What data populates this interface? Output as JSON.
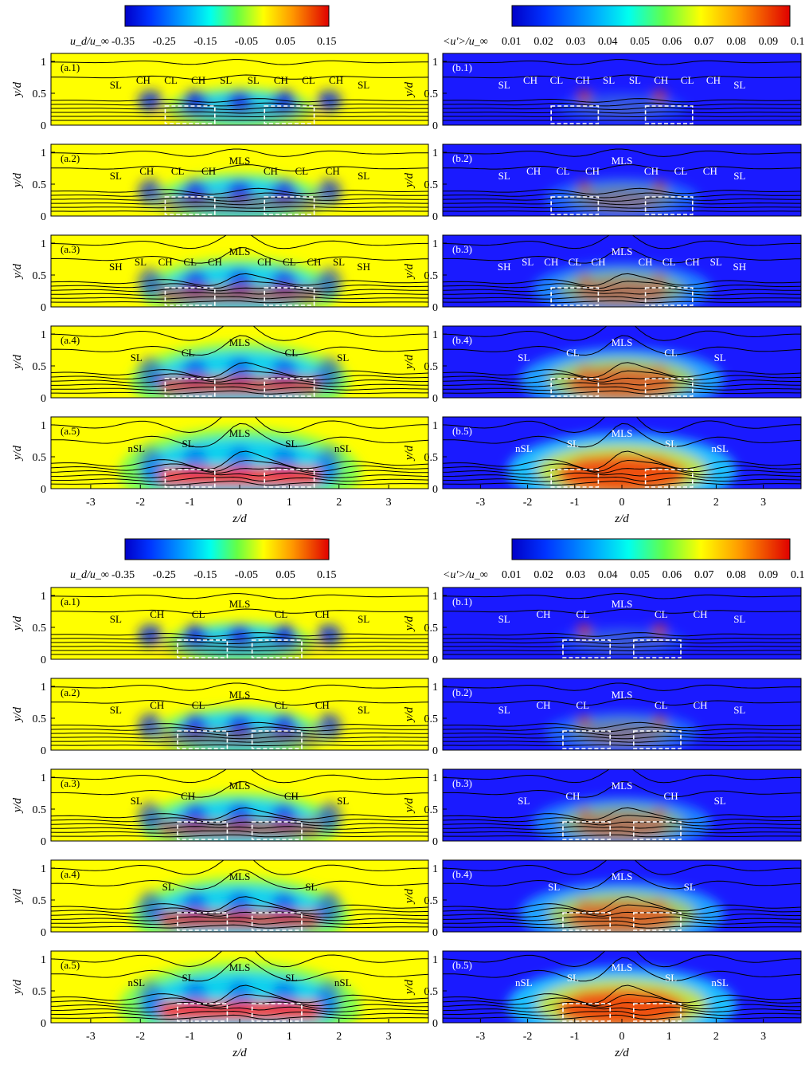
{
  "figure": {
    "blocks": [
      {
        "left": {
          "colorbar": {
            "label": "u_d/u_∞",
            "ticks": [
              "-0.35",
              "-0.25",
              "-0.15",
              "-0.05",
              "0.05",
              "0.15"
            ],
            "range": [
              -0.4,
              0.2
            ]
          },
          "panels": [
            {
              "tag": "(a.1)",
              "labels": [
                "SL",
                "CH",
                "CL",
                "CH",
                "SL",
                "SL",
                "CH",
                "CL",
                "CH",
                "SL"
              ]
            },
            {
              "tag": "(a.2)",
              "labels": [
                "SL",
                "CH",
                "CL",
                "CH",
                "MLS",
                "CH",
                "CL",
                "CH",
                "SL"
              ]
            },
            {
              "tag": "(a.3)",
              "labels": [
                "SH",
                "SL",
                "CH",
                "CL",
                "CH",
                "MLS",
                "CH",
                "CL",
                "CH",
                "SL",
                "SH"
              ]
            },
            {
              "tag": "(a.4)",
              "labels": [
                "SL",
                "CL",
                "MLS",
                "CL",
                "SL"
              ]
            },
            {
              "tag": "(a.5)",
              "labels": [
                "nSL",
                "SL",
                "MLS",
                "SL",
                "nSL"
              ]
            }
          ]
        },
        "right": {
          "colorbar": {
            "label": "<u'>/u_∞",
            "ticks": [
              "0.01",
              "0.02",
              "0.03",
              "0.04",
              "0.05",
              "0.06",
              "0.07",
              "0.08",
              "0.09",
              "0.1"
            ],
            "range": [
              0.0,
              0.1
            ]
          },
          "panels": [
            {
              "tag": "(b.1)",
              "labels": [
                "SL",
                "CH",
                "CL",
                "CH",
                "SL",
                "SL",
                "CH",
                "CL",
                "CH",
                "SL"
              ]
            },
            {
              "tag": "(b.2)",
              "labels": [
                "SL",
                "CH",
                "CL",
                "CH",
                "MLS",
                "CH",
                "CL",
                "CH",
                "SL"
              ]
            },
            {
              "tag": "(b.3)",
              "labels": [
                "SH",
                "SL",
                "CH",
                "CL",
                "CH",
                "MLS",
                "CH",
                "CL",
                "CH",
                "SL",
                "SH"
              ]
            },
            {
              "tag": "(b.4)",
              "labels": [
                "SL",
                "CL",
                "MLS",
                "CL",
                "SL"
              ]
            },
            {
              "tag": "(b.5)",
              "labels": [
                "nSL",
                "SL",
                "MLS",
                "SL",
                "nSL"
              ]
            }
          ]
        }
      },
      {
        "left": {
          "colorbar": {
            "label": "u_d/u_∞",
            "ticks": [
              "-0.35",
              "-0.25",
              "-0.15",
              "-0.05",
              "0.05",
              "0.15"
            ],
            "range": [
              -0.4,
              0.2
            ]
          },
          "panels": [
            {
              "tag": "(a.1)",
              "labels": [
                "SL",
                "CH",
                "CL",
                "MLS",
                "CL",
                "CH",
                "SL"
              ]
            },
            {
              "tag": "(a.2)",
              "labels": [
                "SL",
                "CH",
                "CL",
                "MLS",
                "CL",
                "CH",
                "SL"
              ]
            },
            {
              "tag": "(a.3)",
              "labels": [
                "SL",
                "CH",
                "MLS",
                "CH",
                "SL"
              ]
            },
            {
              "tag": "(a.4)",
              "labels": [
                "SL",
                "MLS",
                "SL"
              ]
            },
            {
              "tag": "(a.5)",
              "labels": [
                "nSL",
                "SL",
                "MLS",
                "SL",
                "nSL"
              ]
            }
          ]
        },
        "right": {
          "colorbar": {
            "label": "<u'>/u_∞",
            "ticks": [
              "0.01",
              "0.02",
              "0.03",
              "0.04",
              "0.05",
              "0.06",
              "0.07",
              "0.08",
              "0.09",
              "0.1"
            ],
            "range": [
              0.0,
              0.1
            ]
          },
          "panels": [
            {
              "tag": "(b.1)",
              "labels": [
                "SL",
                "CH",
                "CL",
                "MLS",
                "CL",
                "CH",
                "SL"
              ]
            },
            {
              "tag": "(b.2)",
              "labels": [
                "SL",
                "CH",
                "CL",
                "MLS",
                "CL",
                "CH",
                "SL"
              ]
            },
            {
              "tag": "(b.3)",
              "labels": [
                "SL",
                "CH",
                "MLS",
                "CH",
                "SL"
              ]
            },
            {
              "tag": "(b.4)",
              "labels": [
                "SL",
                "MLS",
                "SL"
              ]
            },
            {
              "tag": "(b.5)",
              "labels": [
                "nSL",
                "SL",
                "MLS",
                "SL",
                "nSL"
              ]
            }
          ]
        }
      }
    ],
    "axes": {
      "y_label": "y/d",
      "x_label": "z/d",
      "y_ticks": [
        "0",
        "0.5",
        "1"
      ],
      "x_ticks": [
        "-3",
        "-2",
        "-1",
        "0",
        "1",
        "2",
        "3"
      ],
      "xlim": [
        -3.8,
        3.8
      ],
      "ylim": [
        0,
        1
      ]
    },
    "colors": {
      "mean_bg": "#ffff00",
      "rms_bg": "#1a1aff",
      "contour": "#000000",
      "footprint": "#ffffff"
    }
  },
  "chart_data": {
    "type": "heatmap",
    "note_fields": [
      "u_d/u_∞",
      "<u'>/u_∞"
    ],
    "x_range": [
      -3.8,
      3.8
    ],
    "y_range": [
      0,
      1
    ]
  }
}
